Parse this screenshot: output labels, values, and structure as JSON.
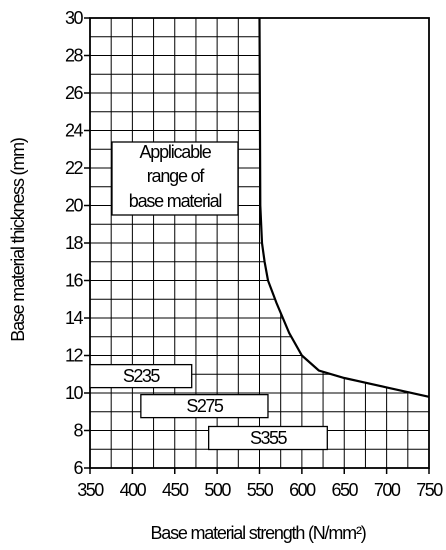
{
  "chart_data": {
    "type": "area",
    "xlabel": "Base material strength (N/mm²)",
    "ylabel": "Base material thickness (mm)",
    "xlim": [
      350,
      750
    ],
    "ylim": [
      6,
      30
    ],
    "x_ticks": [
      350,
      400,
      450,
      500,
      550,
      600,
      650,
      700,
      750
    ],
    "y_ticks": [
      6,
      8,
      10,
      12,
      14,
      16,
      18,
      20,
      22,
      24,
      26,
      28,
      30
    ],
    "grid": "on (hatched applicable region)",
    "boundary_curve": {
      "x": [
        550,
        551,
        553,
        556,
        560,
        570,
        585,
        600,
        620,
        650,
        700,
        750
      ],
      "y": [
        30,
        20,
        18,
        17,
        16,
        14.8,
        13.2,
        12,
        11.2,
        10.8,
        10.3,
        9.8
      ]
    },
    "annotation": [
      "Applicable",
      "range of",
      "base material"
    ],
    "grades": [
      {
        "label": "S235",
        "x_start": 350,
        "x_end": 470,
        "y": 10.9
      },
      {
        "label": "S275",
        "x_start": 410,
        "x_end": 560,
        "y": 9.3
      },
      {
        "label": "S355",
        "x_start": 490,
        "x_end": 630,
        "y": 7.6
      }
    ]
  }
}
